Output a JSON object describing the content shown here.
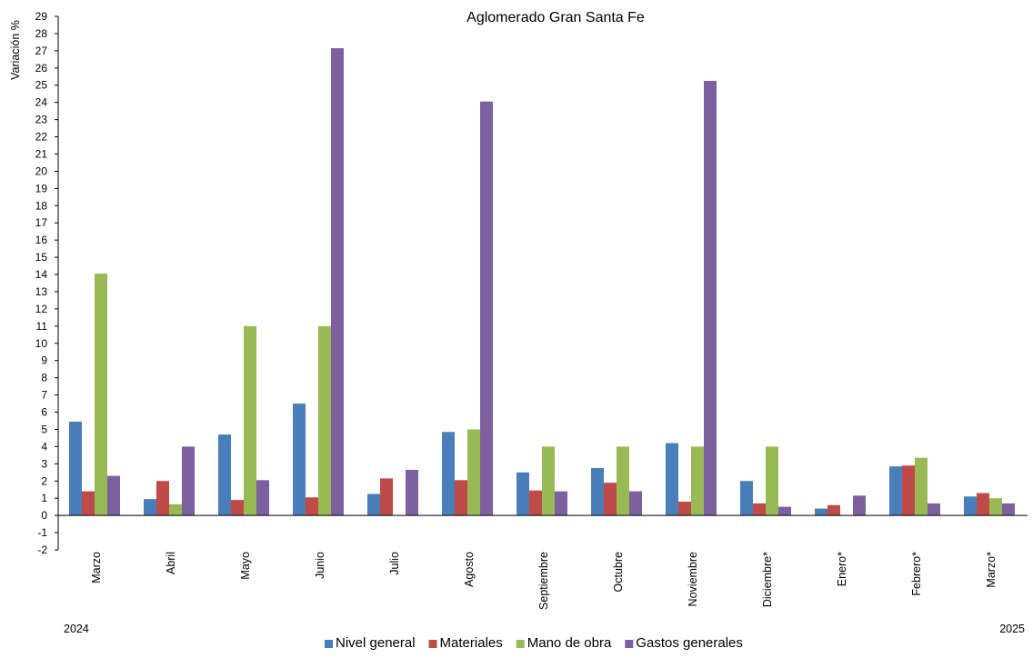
{
  "chart_data": {
    "type": "bar",
    "title": "Aglomerado Gran Santa Fe",
    "ylabel": "Variación  %",
    "xlabel": "",
    "ylim": [
      -2,
      29
    ],
    "y_ticks": [
      -2,
      -1,
      0,
      1,
      2,
      3,
      4,
      5,
      6,
      7,
      8,
      9,
      10,
      11,
      12,
      13,
      14,
      15,
      16,
      17,
      18,
      19,
      20,
      21,
      22,
      23,
      24,
      25,
      26,
      27,
      28,
      29
    ],
    "grid": false,
    "legend_position": "bottom",
    "year_labels": {
      "start": "2024",
      "end": "2025"
    },
    "categories": [
      "Marzo",
      "Abril",
      "Mayo",
      "Junio",
      "Julio",
      "Agosto",
      "Septiembre",
      "Octubre",
      "Noviembre",
      "Diciembre*",
      "Enero*",
      "Febrero*",
      "Marzo*"
    ],
    "series": [
      {
        "name": "Nivel general",
        "color": "#4a7ebb",
        "values": [
          5.45,
          0.95,
          4.7,
          6.5,
          1.25,
          4.85,
          2.5,
          2.75,
          4.2,
          2.0,
          0.4,
          2.85,
          1.1
        ]
      },
      {
        "name": "Materiales",
        "color": "#be4b48",
        "values": [
          1.4,
          2.0,
          0.9,
          1.05,
          2.15,
          2.05,
          1.45,
          1.9,
          0.8,
          0.7,
          0.6,
          2.9,
          1.3
        ]
      },
      {
        "name": "Mano de obra",
        "color": "#98b954",
        "values": [
          14.05,
          0.65,
          11.0,
          11.0,
          0.0,
          5.0,
          4.0,
          4.0,
          4.0,
          4.0,
          0.0,
          3.35,
          1.0
        ]
      },
      {
        "name": "Gastos generales",
        "color": "#7d60a0",
        "values": [
          2.3,
          4.0,
          2.05,
          27.15,
          2.65,
          24.05,
          1.4,
          1.4,
          25.25,
          0.5,
          1.15,
          0.7,
          0.7
        ]
      }
    ]
  }
}
